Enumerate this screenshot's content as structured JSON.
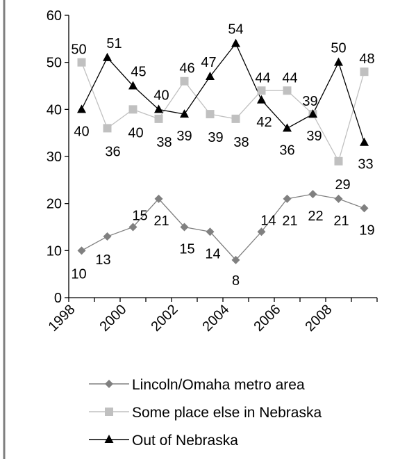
{
  "chart_data": {
    "type": "line",
    "x": [
      1998.5,
      1999.5,
      2000.5,
      2001.5,
      2002.5,
      2003.5,
      2004.5,
      2005.5,
      2006.5,
      2007.5,
      2008.5,
      2009.5
    ],
    "x_ticks": [
      "1998",
      "2000",
      "2002",
      "2004",
      "2006",
      "2008"
    ],
    "y_ticks": [
      "0",
      "10",
      "20",
      "30",
      "40",
      "50",
      "60"
    ],
    "xlim": [
      1998,
      2010
    ],
    "ylim": [
      0,
      60
    ],
    "grid": false,
    "legend_position": "bottom",
    "series": [
      {
        "name": "Lincoln/Omaha metro area",
        "color": "#808080",
        "marker": "diamond",
        "values": [
          10,
          13,
          15,
          21,
          15,
          14,
          8,
          14,
          21,
          22,
          21,
          19
        ],
        "labels": [
          "10",
          "13",
          "15",
          "21",
          "15",
          "14",
          "8",
          "14",
          "21",
          "22",
          "21",
          "19"
        ]
      },
      {
        "name": "Some place else in Nebraska",
        "color": "#c0c0c0",
        "marker": "square",
        "values": [
          50,
          36,
          40,
          38,
          46,
          39,
          38,
          44,
          44,
          39,
          29,
          48
        ],
        "labels": [
          "50",
          "36",
          "40",
          "38",
          "46",
          "39",
          "38",
          "44",
          "44",
          "39",
          "29",
          "48"
        ]
      },
      {
        "name": "Out of Nebraska",
        "color": "#000000",
        "marker": "triangle",
        "values": [
          40,
          51,
          45,
          40,
          39,
          47,
          54,
          42,
          36,
          39,
          50,
          33
        ],
        "labels": [
          "40",
          "51",
          "45",
          "40",
          "39",
          "47",
          "54",
          "42",
          "36",
          "39",
          "50",
          "33"
        ]
      }
    ]
  }
}
